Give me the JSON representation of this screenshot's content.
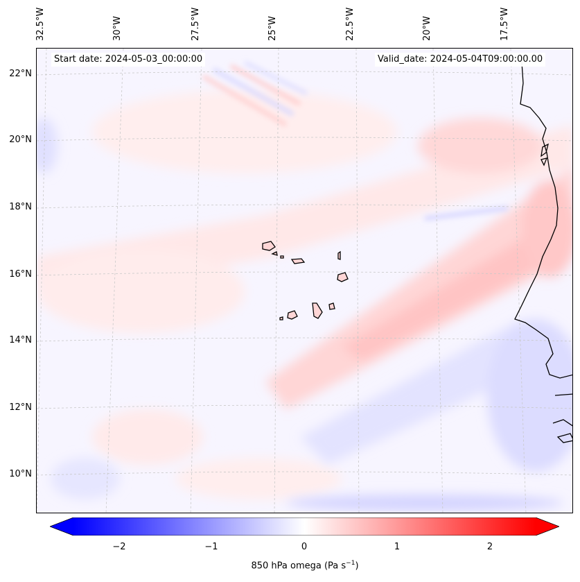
{
  "map": {
    "lon_ticks": [
      "32.5°W",
      "30°W",
      "27.5°W",
      "25°W",
      "22.5°W",
      "20°W",
      "17.5°W"
    ],
    "lat_ticks": [
      "22°N",
      "20°N",
      "18°N",
      "16°N",
      "14°N",
      "12°N",
      "10°N"
    ],
    "start_date": "Start date: 2024-05-03_00:00:00",
    "valid_date": "Valid_date: 2024-05-04T09:00:00.00",
    "field": "850 hPa omega"
  },
  "colorbar": {
    "ticks": [
      "−2",
      "−1",
      "0",
      "1",
      "2"
    ],
    "label": "850 hPa omega (Pa s",
    "unit_sup": "−1",
    "label_end": ")",
    "range": [
      -2.5,
      2.5
    ],
    "cmap": "bwr"
  },
  "colors": {
    "negative": "#0000ff",
    "neutral": "#ffffff",
    "positive": "#ff0000",
    "coast": "#000000",
    "grid": "#c8c8c8"
  }
}
